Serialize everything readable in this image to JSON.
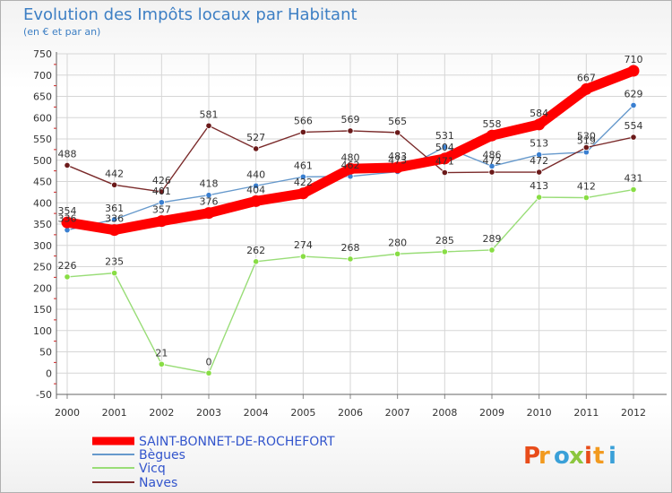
{
  "chart_data": {
    "type": "line",
    "title": "Evolution des Impôts locaux par Habitant",
    "subtitle": "(en € et par an)",
    "xlabel": "",
    "ylabel": "",
    "categories": [
      "2000",
      "2001",
      "2002",
      "2003",
      "2004",
      "2005",
      "2006",
      "2007",
      "2008",
      "2009",
      "2010",
      "2011",
      "2012"
    ],
    "ylim": [
      -50,
      750
    ],
    "yticks": [
      -50,
      0,
      50,
      100,
      150,
      200,
      250,
      300,
      350,
      400,
      450,
      500,
      550,
      600,
      650,
      700,
      750
    ],
    "grid": true,
    "legend_position": "bottom-left",
    "series": [
      {
        "name": "SAINT-BONNET-DE-ROCHEFORT",
        "color": "#ff0000",
        "marker_color": "#ff0000",
        "values": [
          354,
          336,
          357,
          376,
          404,
          422,
          480,
          483,
          504,
          558,
          584,
          667,
          710
        ]
      },
      {
        "name": "Bègues",
        "color": "#6699cc",
        "marker_color": "#3a7fd0",
        "values": [
          336,
          361,
          401,
          418,
          440,
          461,
          462,
          473,
          531,
          486,
          513,
          519,
          629
        ]
      },
      {
        "name": "Vicq",
        "color": "#99dd77",
        "marker_color": "#88dd44",
        "values": [
          226,
          235,
          21,
          0,
          262,
          274,
          268,
          280,
          285,
          289,
          413,
          412,
          431
        ]
      },
      {
        "name": "Naves",
        "color": "#7a2a2a",
        "marker_color": "#6b1a1a",
        "values": [
          488,
          442,
          426,
          581,
          527,
          566,
          569,
          565,
          471,
          472,
          472,
          530,
          554
        ]
      }
    ]
  },
  "labels": {
    "SAINT-BONNET-DE-ROCHEFORT": [
      "354",
      "336",
      "357",
      "376",
      "404",
      "422",
      "480",
      "483",
      "504",
      "558",
      "584",
      "667",
      "710"
    ],
    "Bègues": [
      "336",
      "361",
      "401",
      "418",
      "440",
      "461",
      "462",
      "473",
      "531",
      "486",
      "513",
      "519",
      "629"
    ],
    "Vicq": [
      "226",
      "235",
      "21",
      "0",
      "262",
      "274",
      "268",
      "280",
      "285",
      "289",
      "413",
      "412",
      "431"
    ],
    "Naves": [
      "488",
      "442",
      "426",
      "581",
      "527",
      "566",
      "569",
      "565",
      "471",
      "472",
      "472",
      "530",
      "554"
    ]
  },
  "branding": {
    "text": "Proxiti",
    "colors": [
      "#e84c1a",
      "#f29a1f",
      "#3aa0d8",
      "#8cc63e"
    ]
  }
}
